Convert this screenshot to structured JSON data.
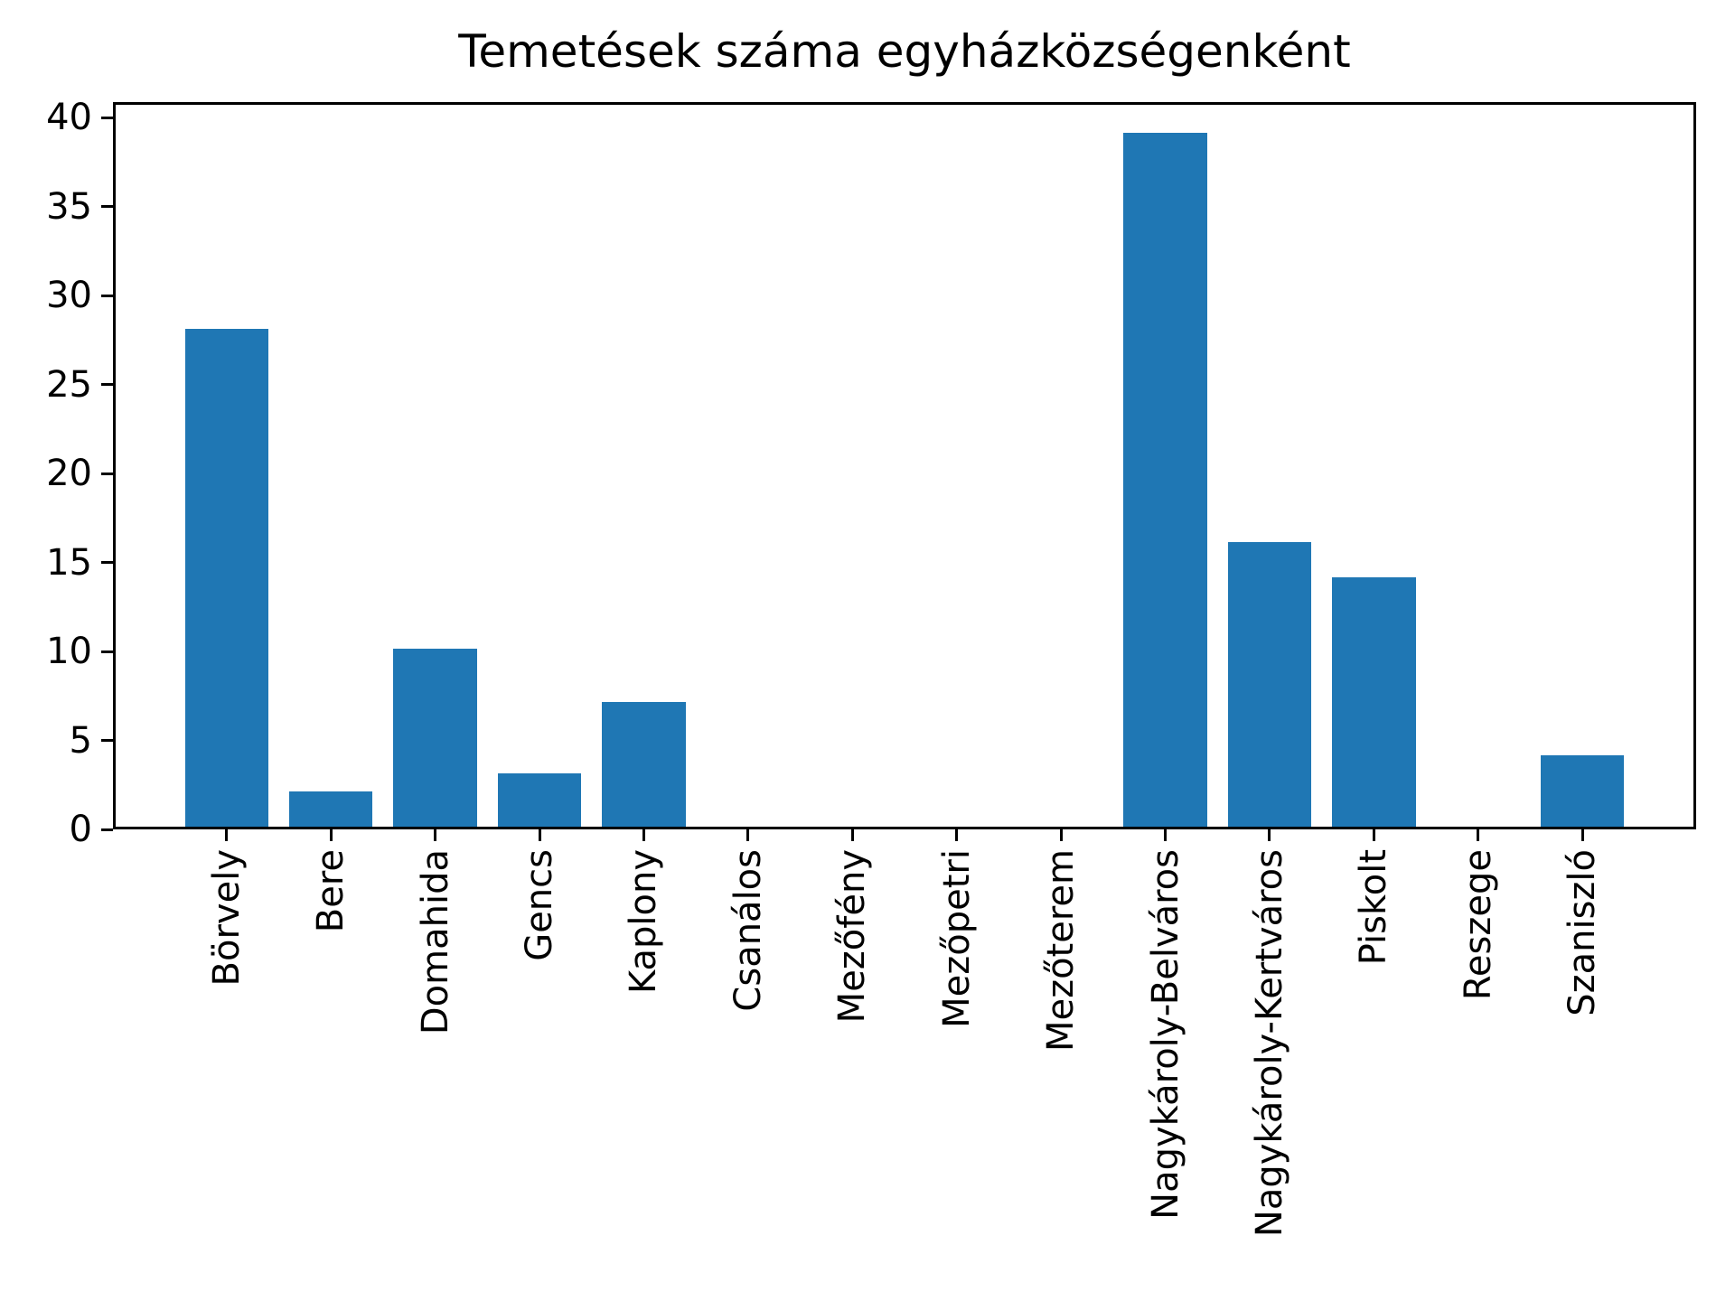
{
  "chart_data": {
    "type": "bar",
    "title": "Temetések száma egyházközségenként",
    "categories": [
      "Börvely",
      "Bere",
      "Domahida",
      "Gencs",
      "Kaplony",
      "Csanálos",
      "Mezőfény",
      "Mezőpetri",
      "Mezőterem",
      "Nagykároly-Belváros",
      "Nagykároly-Kertváros",
      "Piskolt",
      "Reszege",
      "Szaniszló"
    ],
    "values": [
      28,
      2,
      10,
      3,
      7,
      0,
      0,
      0,
      0,
      39,
      16,
      14,
      0,
      4
    ],
    "xlabel": "",
    "ylabel": "",
    "yticks": [
      0,
      5,
      10,
      15,
      20,
      25,
      30,
      35,
      40
    ],
    "ylim": [
      0,
      40.88
    ],
    "xlim": [
      -1.09,
      14.09
    ],
    "bar_width": 0.8,
    "bar_color": "#1f77b4",
    "axis_color": "#000000",
    "text_color": "#000000",
    "grid": false,
    "legend": "none",
    "x_tick_label_rotation_deg": 90
  }
}
